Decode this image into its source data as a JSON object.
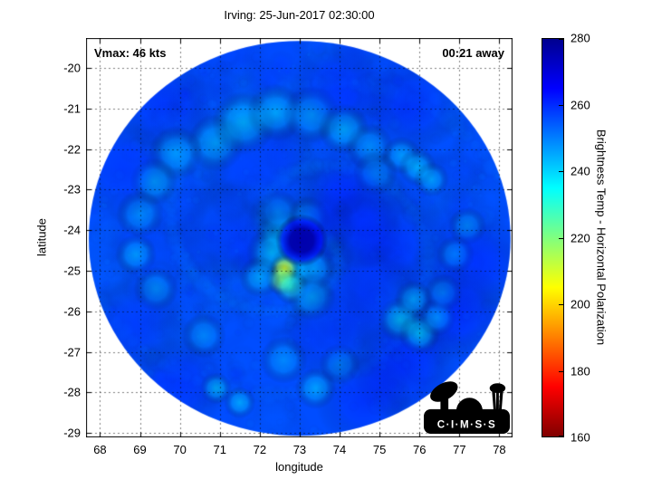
{
  "title": "Irving: 25-Jun-2017 02:30:00",
  "annotations": {
    "vmax": "Vmax: 46 kts",
    "time_away": "00:21 away"
  },
  "axes": {
    "xlabel": "longitude",
    "ylabel": "latitude",
    "xticks": [
      68,
      69,
      70,
      71,
      72,
      73,
      74,
      75,
      76,
      77,
      78
    ],
    "yticks": [
      -20,
      -21,
      -22,
      -23,
      -24,
      -25,
      -26,
      -27,
      -28,
      -29
    ],
    "xlim": [
      67.65,
      78.33
    ],
    "ylim": [
      -29.11,
      -19.26
    ],
    "grid": "dotted-black"
  },
  "colorbar": {
    "label": "Brightness Temp - Horizontal Polarization",
    "ticks": [
      160,
      180,
      200,
      220,
      240,
      260,
      280
    ],
    "min": 160,
    "max": 280,
    "stops": [
      {
        "value": 280,
        "color": "#00008F"
      },
      {
        "value": 265,
        "color": "#0000FF"
      },
      {
        "value": 235,
        "color": "#00FFFF"
      },
      {
        "value": 205,
        "color": "#FFFF00"
      },
      {
        "value": 175,
        "color": "#FF0000"
      },
      {
        "value": 160,
        "color": "#800000"
      }
    ]
  },
  "logo": {
    "name": "CIMSS",
    "text": "C·I·M·S·S"
  },
  "chart_data": {
    "type": "heatmap",
    "title": "Irving: 25-Jun-2017 02:30:00",
    "xlabel": "longitude",
    "ylabel": "latitude",
    "value_label": "Brightness Temp - Horizontal Polarization",
    "value_range": [
      160,
      280
    ],
    "xlim": [
      67.65,
      78.33
    ],
    "ylim": [
      -29.11,
      -19.26
    ],
    "swath": {
      "center_lon": 73.0,
      "center_lat": -24.2,
      "rx_deg": 5.28,
      "ry_deg": 4.87,
      "background_temp": 256
    },
    "eye": {
      "lon": 73.05,
      "lat": -24.25,
      "temp": 276,
      "size_deg": 0.3
    },
    "features_format": "[lon, lat, temp_K, size_deg]",
    "features": [
      [
        72.5,
        -24.05,
        243,
        0.3
      ],
      [
        72.3,
        -24.55,
        240,
        0.32
      ],
      [
        72.8,
        -25.0,
        237,
        0.3
      ],
      [
        73.35,
        -24.95,
        244,
        0.28
      ],
      [
        73.2,
        -23.7,
        246,
        0.28
      ],
      [
        72.45,
        -23.55,
        247,
        0.28
      ],
      [
        72.62,
        -24.95,
        208,
        0.18
      ],
      [
        72.55,
        -25.22,
        220,
        0.2
      ],
      [
        72.78,
        -25.4,
        230,
        0.22
      ],
      [
        73.3,
        -25.65,
        244,
        0.3
      ],
      [
        72.0,
        -25.15,
        243,
        0.26
      ],
      [
        70.9,
        -21.85,
        243,
        0.36
      ],
      [
        71.6,
        -21.35,
        241,
        0.4
      ],
      [
        72.4,
        -21.1,
        242,
        0.36
      ],
      [
        73.3,
        -21.15,
        244,
        0.36
      ],
      [
        74.1,
        -21.5,
        242,
        0.32
      ],
      [
        74.75,
        -21.95,
        246,
        0.3
      ],
      [
        69.9,
        -22.1,
        244,
        0.34
      ],
      [
        69.35,
        -22.8,
        243,
        0.3
      ],
      [
        69.0,
        -23.6,
        246,
        0.3
      ],
      [
        68.9,
        -24.6,
        244,
        0.26
      ],
      [
        69.4,
        -25.45,
        246,
        0.28
      ],
      [
        70.6,
        -26.6,
        247,
        0.28
      ],
      [
        70.9,
        -27.9,
        240,
        0.2
      ],
      [
        71.5,
        -28.25,
        242,
        0.2
      ],
      [
        72.6,
        -27.2,
        246,
        0.3
      ],
      [
        73.4,
        -27.9,
        243,
        0.26
      ],
      [
        74.0,
        -27.3,
        247,
        0.26
      ],
      [
        75.5,
        -26.2,
        238,
        0.28
      ],
      [
        76.0,
        -26.55,
        236,
        0.26
      ],
      [
        76.45,
        -26.15,
        241,
        0.24
      ],
      [
        75.85,
        -25.7,
        243,
        0.24
      ],
      [
        76.6,
        -25.55,
        245,
        0.24
      ],
      [
        76.9,
        -24.6,
        244,
        0.24
      ],
      [
        77.2,
        -23.9,
        246,
        0.24
      ],
      [
        75.55,
        -22.15,
        244,
        0.24
      ],
      [
        75.95,
        -22.45,
        241,
        0.24
      ],
      [
        76.3,
        -22.75,
        243,
        0.22
      ],
      [
        74.9,
        -22.6,
        247,
        0.28
      ],
      [
        74.3,
        -23.2,
        263,
        0.65
      ],
      [
        75.1,
        -24.3,
        262,
        0.75
      ],
      [
        74.6,
        -25.6,
        262,
        0.65
      ],
      [
        73.8,
        -26.5,
        261,
        0.55
      ],
      [
        75.6,
        -27.4,
        264,
        0.6
      ],
      [
        74.6,
        -28.2,
        263,
        0.55
      ],
      [
        77.4,
        -24.8,
        263,
        0.6
      ],
      [
        77.0,
        -26.0,
        262,
        0.55
      ],
      [
        75.9,
        -20.9,
        262,
        0.55
      ],
      [
        73.9,
        -20.5,
        261,
        0.55
      ],
      [
        69.6,
        -20.9,
        262,
        0.55
      ],
      [
        68.6,
        -22.5,
        261,
        0.55
      ],
      [
        70.0,
        -27.8,
        262,
        0.55
      ],
      [
        68.9,
        -26.3,
        261,
        0.55
      ],
      [
        72.0,
        -22.6,
        259,
        0.7
      ],
      [
        74.6,
        -24.0,
        261,
        0.45
      ],
      [
        71.2,
        -24.0,
        258,
        0.6
      ],
      [
        73.55,
        -23.85,
        263,
        0.4
      ]
    ]
  }
}
